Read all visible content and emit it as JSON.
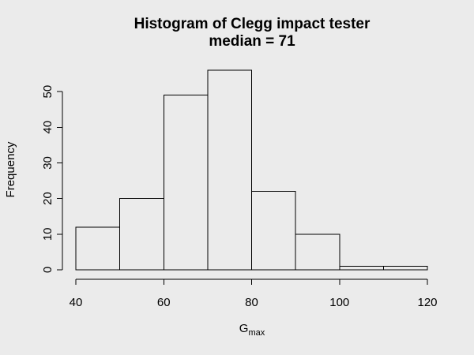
{
  "chart_data": {
    "type": "histogram",
    "title": "Histogram of Clegg impact tester",
    "subtitle": "median = 71",
    "xlabel": {
      "base": "G",
      "subscript": "max"
    },
    "ylabel": "Frequency",
    "bins": [
      {
        "from": 40,
        "to": 50,
        "count": 12
      },
      {
        "from": 50,
        "to": 60,
        "count": 20
      },
      {
        "from": 60,
        "to": 70,
        "count": 49
      },
      {
        "from": 70,
        "to": 80,
        "count": 56
      },
      {
        "from": 80,
        "to": 90,
        "count": 22
      },
      {
        "from": 90,
        "to": 100,
        "count": 10
      },
      {
        "from": 100,
        "to": 110,
        "count": 1
      },
      {
        "from": 110,
        "to": 120,
        "count": 1
      }
    ],
    "xlim": [
      40,
      120
    ],
    "ylim": [
      0,
      56
    ],
    "xticks": [
      40,
      60,
      80,
      100,
      120
    ],
    "yticks": [
      0,
      10,
      20,
      30,
      40,
      50
    ],
    "colors": {
      "background": "#ebebeb",
      "bar_fill": "#ebebeb",
      "stroke": "#000000"
    }
  }
}
